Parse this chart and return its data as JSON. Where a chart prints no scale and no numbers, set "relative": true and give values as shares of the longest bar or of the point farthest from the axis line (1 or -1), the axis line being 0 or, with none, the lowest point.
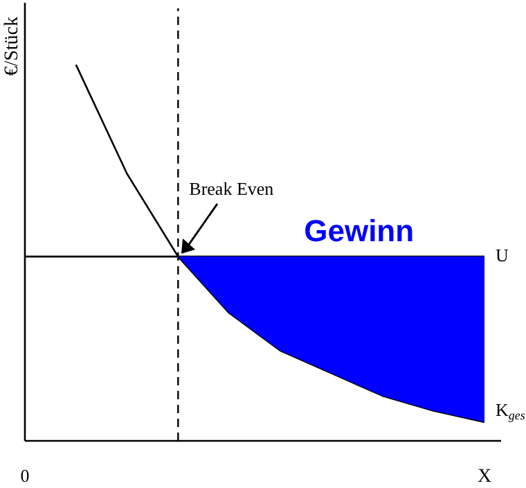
{
  "chart_data": {
    "type": "line",
    "relative": true,
    "xlabel": "X",
    "ylabel": "€/Stück",
    "categories": [
      null,
      null,
      null,
      null,
      null,
      null,
      null,
      null,
      null,
      null
    ],
    "series": [
      {
        "type": "area",
        "color": "#0000ff",
        "values": [
          null,
          null,
          null,
          0.49,
          0.49,
          0.49,
          0.49,
          0.49,
          0.49,
          0.49
        ]
      },
      {
        "name": "U",
        "color": "#000000",
        "values": [
          0.49,
          0.49,
          0.49,
          0.49,
          0.49,
          0.49,
          0.49,
          0.49,
          0.49,
          0.49
        ]
      },
      {
        "name": "K$_{ges}$",
        "color": "#000000",
        "values": [
          null,
          1,
          0.71,
          0.49,
          0.34,
          0.24,
          0.18,
          0.12,
          0.08,
          0.05
        ]
      }
    ],
    "annotations": [
      "0",
      "Break Even",
      "Gewinn"
    ],
    "marker": "none",
    "line_style": "solid"
  }
}
